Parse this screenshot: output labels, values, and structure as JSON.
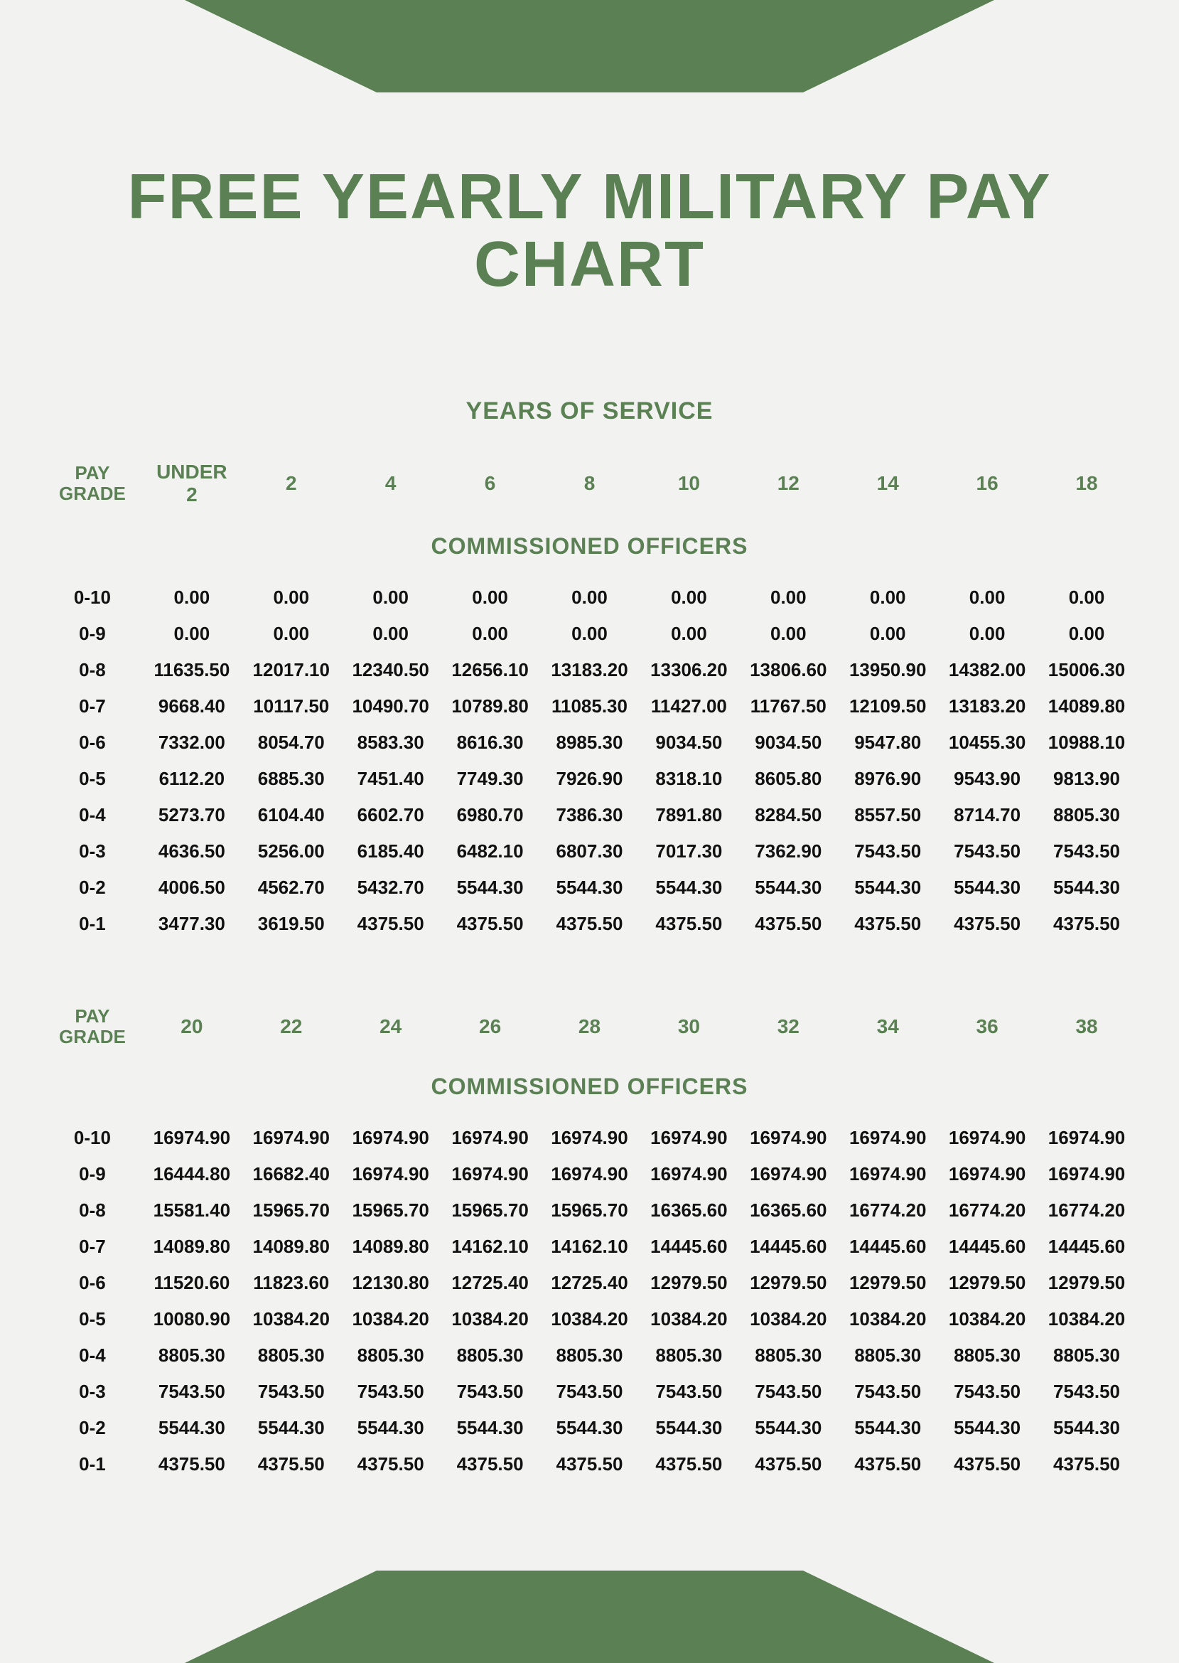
{
  "colors": {
    "accent": "#5b8054",
    "background": "#f2f3f1",
    "text": "#111111"
  },
  "typography": {
    "title_fontsize": 90,
    "subtitle_fontsize": 34,
    "header_fontsize": 28,
    "cell_fontsize": 26,
    "font_family": "Arial"
  },
  "title": "FREE YEARLY MILITARY PAY CHART",
  "subtitle": "YEARS OF SERVICE",
  "grade_header": "PAY GRADE",
  "section_label": "COMMISSIONED OFFICERS",
  "table1": {
    "columns": [
      "UNDER 2",
      "2",
      "4",
      "6",
      "8",
      "10",
      "12",
      "14",
      "16",
      "18"
    ],
    "grades": [
      "0-10",
      "0-9",
      "0-8",
      "0-7",
      "0-6",
      "0-5",
      "0-4",
      "0-3",
      "0-2",
      "0-1"
    ],
    "rows": [
      [
        "0.00",
        "0.00",
        "0.00",
        "0.00",
        "0.00",
        "0.00",
        "0.00",
        "0.00",
        "0.00",
        "0.00"
      ],
      [
        "0.00",
        "0.00",
        "0.00",
        "0.00",
        "0.00",
        "0.00",
        "0.00",
        "0.00",
        "0.00",
        "0.00"
      ],
      [
        "11635.50",
        "12017.10",
        "12340.50",
        "12656.10",
        "13183.20",
        "13306.20",
        "13806.60",
        "13950.90",
        "14382.00",
        "15006.30"
      ],
      [
        "9668.40",
        "10117.50",
        "10490.70",
        "10789.80",
        "11085.30",
        "11427.00",
        "11767.50",
        "12109.50",
        "13183.20",
        "14089.80"
      ],
      [
        "7332.00",
        "8054.70",
        "8583.30",
        "8616.30",
        "8985.30",
        "9034.50",
        "9034.50",
        "9547.80",
        "10455.30",
        "10988.10"
      ],
      [
        "6112.20",
        "6885.30",
        "7451.40",
        "7749.30",
        "7926.90",
        "8318.10",
        "8605.80",
        "8976.90",
        "9543.90",
        "9813.90"
      ],
      [
        "5273.70",
        "6104.40",
        "6602.70",
        "6980.70",
        "7386.30",
        "7891.80",
        "8284.50",
        "8557.50",
        "8714.70",
        "8805.30"
      ],
      [
        "4636.50",
        "5256.00",
        "6185.40",
        "6482.10",
        "6807.30",
        "7017.30",
        "7362.90",
        "7543.50",
        "7543.50",
        "7543.50"
      ],
      [
        "4006.50",
        "4562.70",
        "5432.70",
        "5544.30",
        "5544.30",
        "5544.30",
        "5544.30",
        "5544.30",
        "5544.30",
        "5544.30"
      ],
      [
        "3477.30",
        "3619.50",
        "4375.50",
        "4375.50",
        "4375.50",
        "4375.50",
        "4375.50",
        "4375.50",
        "4375.50",
        "4375.50"
      ]
    ]
  },
  "table2": {
    "columns": [
      "20",
      "22",
      "24",
      "26",
      "28",
      "30",
      "32",
      "34",
      "36",
      "38"
    ],
    "grades": [
      "0-10",
      "0-9",
      "0-8",
      "0-7",
      "0-6",
      "0-5",
      "0-4",
      "0-3",
      "0-2",
      "0-1"
    ],
    "rows": [
      [
        "16974.90",
        "16974.90",
        "16974.90",
        "16974.90",
        "16974.90",
        "16974.90",
        "16974.90",
        "16974.90",
        "16974.90",
        "16974.90"
      ],
      [
        "16444.80",
        "16682.40",
        "16974.90",
        "16974.90",
        "16974.90",
        "16974.90",
        "16974.90",
        "16974.90",
        "16974.90",
        "16974.90"
      ],
      [
        "15581.40",
        "15965.70",
        "15965.70",
        "15965.70",
        "15965.70",
        "16365.60",
        "16365.60",
        "16774.20",
        "16774.20",
        "16774.20"
      ],
      [
        "14089.80",
        "14089.80",
        "14089.80",
        "14162.10",
        "14162.10",
        "14445.60",
        "14445.60",
        "14445.60",
        "14445.60",
        "14445.60"
      ],
      [
        "11520.60",
        "11823.60",
        "12130.80",
        "12725.40",
        "12725.40",
        "12979.50",
        "12979.50",
        "12979.50",
        "12979.50",
        "12979.50"
      ],
      [
        "10080.90",
        "10384.20",
        "10384.20",
        "10384.20",
        "10384.20",
        "10384.20",
        "10384.20",
        "10384.20",
        "10384.20",
        "10384.20"
      ],
      [
        "8805.30",
        "8805.30",
        "8805.30",
        "8805.30",
        "8805.30",
        "8805.30",
        "8805.30",
        "8805.30",
        "8805.30",
        "8805.30"
      ],
      [
        "7543.50",
        "7543.50",
        "7543.50",
        "7543.50",
        "7543.50",
        "7543.50",
        "7543.50",
        "7543.50",
        "7543.50",
        "7543.50"
      ],
      [
        "5544.30",
        "5544.30",
        "5544.30",
        "5544.30",
        "5544.30",
        "5544.30",
        "5544.30",
        "5544.30",
        "5544.30",
        "5544.30"
      ],
      [
        "4375.50",
        "4375.50",
        "4375.50",
        "4375.50",
        "4375.50",
        "4375.50",
        "4375.50",
        "4375.50",
        "4375.50",
        "4375.50"
      ]
    ]
  }
}
